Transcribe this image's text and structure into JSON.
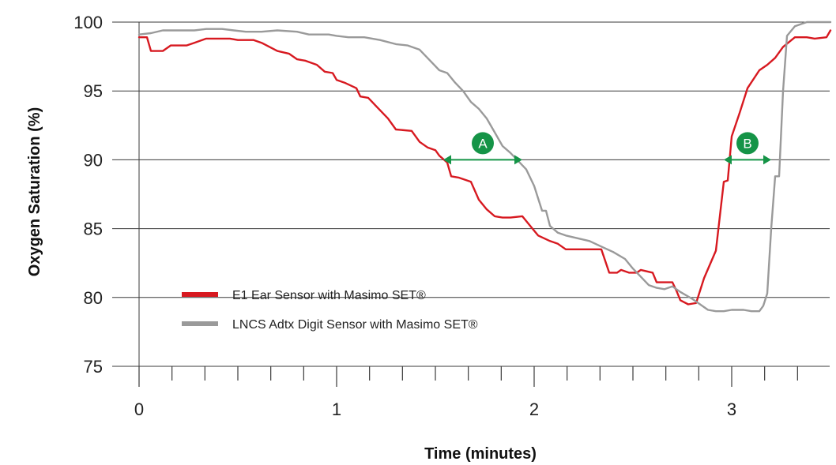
{
  "chart_data": {
    "type": "line",
    "xlabel": "Time (minutes)",
    "ylabel": "Oxygen Saturation (%)",
    "xlim": [
      0,
      3.5
    ],
    "ylim": [
      75,
      100
    ],
    "x_ticks": [
      0,
      1,
      2,
      3
    ],
    "y_ticks": [
      75,
      80,
      85,
      90,
      95,
      100
    ],
    "legend_position": "bottom-left",
    "series": [
      {
        "name": "E1 Ear Sensor with Masimo SET®",
        "color": "#d71920",
        "points": [
          [
            0.0,
            98.9
          ],
          [
            0.04,
            98.9
          ],
          [
            0.06,
            97.9
          ],
          [
            0.12,
            97.9
          ],
          [
            0.16,
            98.3
          ],
          [
            0.24,
            98.3
          ],
          [
            0.28,
            98.5
          ],
          [
            0.34,
            98.8
          ],
          [
            0.46,
            98.8
          ],
          [
            0.5,
            98.7
          ],
          [
            0.58,
            98.7
          ],
          [
            0.62,
            98.5
          ],
          [
            0.7,
            97.9
          ],
          [
            0.76,
            97.7
          ],
          [
            0.8,
            97.3
          ],
          [
            0.84,
            97.2
          ],
          [
            0.9,
            96.9
          ],
          [
            0.94,
            96.4
          ],
          [
            0.98,
            96.3
          ],
          [
            1.0,
            95.8
          ],
          [
            1.04,
            95.6
          ],
          [
            1.1,
            95.2
          ],
          [
            1.12,
            94.6
          ],
          [
            1.16,
            94.5
          ],
          [
            1.2,
            93.9
          ],
          [
            1.26,
            93.0
          ],
          [
            1.3,
            92.2
          ],
          [
            1.38,
            92.1
          ],
          [
            1.42,
            91.3
          ],
          [
            1.46,
            90.9
          ],
          [
            1.5,
            90.7
          ],
          [
            1.52,
            90.3
          ],
          [
            1.56,
            89.8
          ],
          [
            1.58,
            88.8
          ],
          [
            1.62,
            88.7
          ],
          [
            1.68,
            88.4
          ],
          [
            1.72,
            87.1
          ],
          [
            1.76,
            86.4
          ],
          [
            1.8,
            85.9
          ],
          [
            1.84,
            85.8
          ],
          [
            1.88,
            85.8
          ],
          [
            1.94,
            85.9
          ],
          [
            1.98,
            85.2
          ],
          [
            2.02,
            84.5
          ],
          [
            2.08,
            84.1
          ],
          [
            2.12,
            83.9
          ],
          [
            2.16,
            83.5
          ],
          [
            2.24,
            83.5
          ],
          [
            2.28,
            83.5
          ],
          [
            2.34,
            83.5
          ],
          [
            2.38,
            81.8
          ],
          [
            2.42,
            81.8
          ],
          [
            2.44,
            82.0
          ],
          [
            2.48,
            81.8
          ],
          [
            2.52,
            81.8
          ],
          [
            2.54,
            82.0
          ],
          [
            2.6,
            81.8
          ],
          [
            2.62,
            81.1
          ],
          [
            2.66,
            81.1
          ],
          [
            2.7,
            81.1
          ],
          [
            2.72,
            80.5
          ],
          [
            2.74,
            79.8
          ],
          [
            2.78,
            79.5
          ],
          [
            2.82,
            79.6
          ],
          [
            2.86,
            81.4
          ],
          [
            2.92,
            83.4
          ],
          [
            2.96,
            88.4
          ],
          [
            2.98,
            88.5
          ],
          [
            3.0,
            91.7
          ],
          [
            3.04,
            93.4
          ],
          [
            3.08,
            95.2
          ],
          [
            3.14,
            96.5
          ],
          [
            3.18,
            96.9
          ],
          [
            3.22,
            97.4
          ],
          [
            3.26,
            98.2
          ],
          [
            3.32,
            98.9
          ],
          [
            3.38,
            98.9
          ],
          [
            3.42,
            98.8
          ],
          [
            3.48,
            98.9
          ],
          [
            3.52,
            99.4
          ],
          [
            3.56,
            99.4
          ]
        ]
      },
      {
        "name": "LNCS Adtx Digit Sensor with Masimo SET®",
        "color": "#9a9a9a",
        "points": [
          [
            0.0,
            99.1
          ],
          [
            0.06,
            99.2
          ],
          [
            0.12,
            99.4
          ],
          [
            0.2,
            99.4
          ],
          [
            0.28,
            99.4
          ],
          [
            0.34,
            99.5
          ],
          [
            0.42,
            99.5
          ],
          [
            0.48,
            99.4
          ],
          [
            0.54,
            99.3
          ],
          [
            0.62,
            99.3
          ],
          [
            0.7,
            99.4
          ],
          [
            0.8,
            99.3
          ],
          [
            0.86,
            99.1
          ],
          [
            0.96,
            99.1
          ],
          [
            1.0,
            99.0
          ],
          [
            1.06,
            98.9
          ],
          [
            1.14,
            98.9
          ],
          [
            1.22,
            98.7
          ],
          [
            1.3,
            98.4
          ],
          [
            1.36,
            98.3
          ],
          [
            1.42,
            98.0
          ],
          [
            1.48,
            97.1
          ],
          [
            1.52,
            96.5
          ],
          [
            1.56,
            96.3
          ],
          [
            1.6,
            95.6
          ],
          [
            1.64,
            95.0
          ],
          [
            1.68,
            94.2
          ],
          [
            1.72,
            93.7
          ],
          [
            1.76,
            93.0
          ],
          [
            1.8,
            92.0
          ],
          [
            1.84,
            91.0
          ],
          [
            1.88,
            90.5
          ],
          [
            1.92,
            89.9
          ],
          [
            1.96,
            89.3
          ],
          [
            2.0,
            88.1
          ],
          [
            2.04,
            86.3
          ],
          [
            2.06,
            86.3
          ],
          [
            2.08,
            85.2
          ],
          [
            2.12,
            84.7
          ],
          [
            2.16,
            84.5
          ],
          [
            2.22,
            84.3
          ],
          [
            2.28,
            84.1
          ],
          [
            2.34,
            83.7
          ],
          [
            2.4,
            83.3
          ],
          [
            2.46,
            82.8
          ],
          [
            2.5,
            82.1
          ],
          [
            2.54,
            81.5
          ],
          [
            2.58,
            80.9
          ],
          [
            2.62,
            80.7
          ],
          [
            2.66,
            80.6
          ],
          [
            2.7,
            80.8
          ],
          [
            2.74,
            80.4
          ],
          [
            2.8,
            79.9
          ],
          [
            2.84,
            79.5
          ],
          [
            2.88,
            79.1
          ],
          [
            2.92,
            79.0
          ],
          [
            2.96,
            79.0
          ],
          [
            3.0,
            79.1
          ],
          [
            3.06,
            79.1
          ],
          [
            3.1,
            79.0
          ],
          [
            3.14,
            79.0
          ],
          [
            3.16,
            79.4
          ],
          [
            3.18,
            80.3
          ],
          [
            3.2,
            85.0
          ],
          [
            3.22,
            88.8
          ],
          [
            3.24,
            88.8
          ],
          [
            3.26,
            95.0
          ],
          [
            3.28,
            99.0
          ],
          [
            3.32,
            99.7
          ],
          [
            3.38,
            100.0
          ],
          [
            3.44,
            100.0
          ],
          [
            3.5,
            100.0
          ]
        ]
      }
    ],
    "annotations": [
      {
        "label": "A",
        "y": 90,
        "x_from": 1.54,
        "x_to": 1.94,
        "color": "#159447"
      },
      {
        "label": "B",
        "y": 90,
        "x_from": 2.96,
        "x_to": 3.2,
        "color": "#159447"
      }
    ]
  }
}
